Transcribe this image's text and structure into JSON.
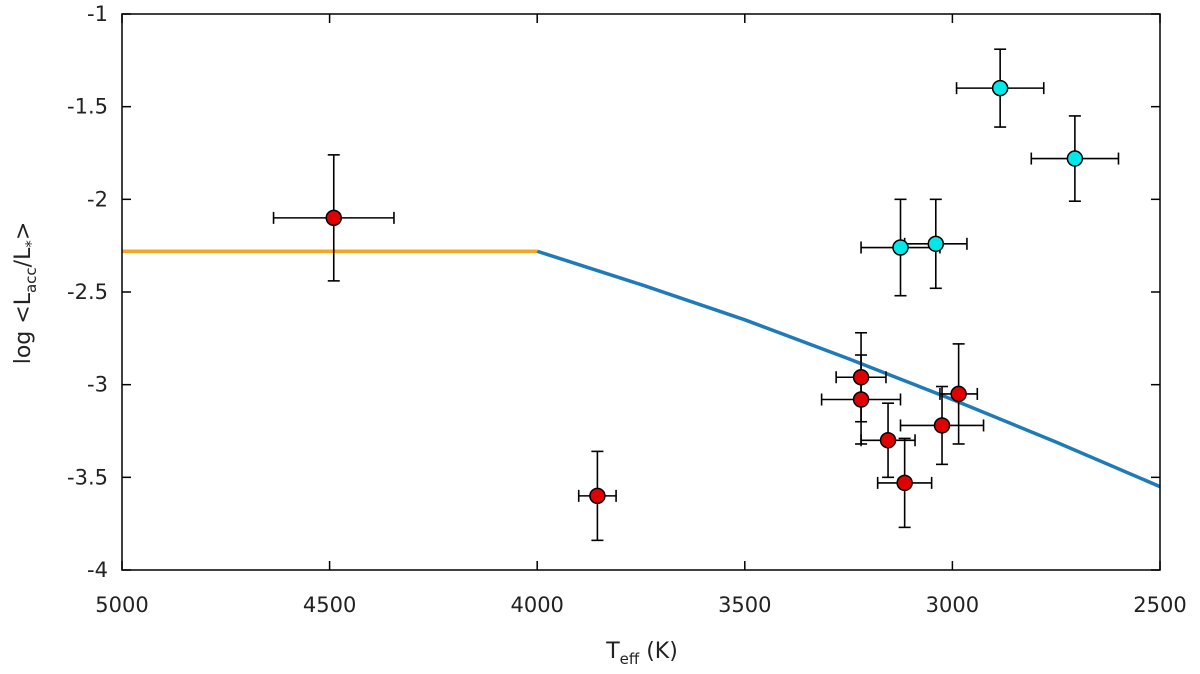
{
  "chart_data": {
    "type": "scatter",
    "title": "",
    "xlabel": {
      "main": "T",
      "sub": "eff",
      "tail": " (K)"
    },
    "ylabel": {
      "prefix": "log <L",
      "sub": "acc",
      "middle": "/L",
      "star": "*",
      "suffix": ">"
    },
    "xlim": [
      5000,
      2500
    ],
    "ylim": [
      -4,
      -1
    ],
    "x_ticks": [
      "5000",
      "4500",
      "4000",
      "3500",
      "3000",
      "2500"
    ],
    "y_ticks": [
      "-1",
      "-1.5",
      "-2",
      "-2.5",
      "-3",
      "-3.5",
      "-4"
    ],
    "grid": false,
    "series": [
      {
        "name": "red points",
        "color": "#e00000",
        "points": [
          {
            "x": 4490,
            "y": -2.1,
            "xerr": 145,
            "yerr": 0.34
          },
          {
            "x": 3855,
            "y": -3.6,
            "xerr": 45,
            "yerr": 0.24
          },
          {
            "x": 3220,
            "y": -2.96,
            "xerr": 60,
            "yerr": 0.24
          },
          {
            "x": 3220,
            "y": -3.08,
            "xerr": 95,
            "yerr": 0.24
          },
          {
            "x": 3155,
            "y": -3.3,
            "xerr": 65,
            "yerr": 0.2
          },
          {
            "x": 3115,
            "y": -3.53,
            "xerr": 65,
            "yerr": 0.24
          },
          {
            "x": 3025,
            "y": -3.22,
            "xerr": 100,
            "yerr": 0.21
          },
          {
            "x": 2985,
            "y": -3.05,
            "xerr": 45,
            "yerr": 0.27
          }
        ]
      },
      {
        "name": "cyan points",
        "color": "#00e8e8",
        "points": [
          {
            "x": 2885,
            "y": -1.4,
            "xerr": 105,
            "yerr": 0.21
          },
          {
            "x": 2705,
            "y": -1.78,
            "xerr": 105,
            "yerr": 0.23
          },
          {
            "x": 3125,
            "y": -2.26,
            "xerr": 95,
            "yerr": 0.26
          },
          {
            "x": 3040,
            "y": -2.24,
            "xerr": 75,
            "yerr": 0.24
          }
        ]
      }
    ],
    "lines": [
      {
        "name": "orange line",
        "color": "#f5a623",
        "x": [
          5000,
          4000
        ],
        "y": [
          -2.28,
          -2.28
        ]
      },
      {
        "name": "blue curve",
        "color": "#1f7ab8",
        "x": [
          4000,
          3750,
          3500,
          3250,
          3000,
          2750,
          2500
        ],
        "y": [
          -2.28,
          -2.46,
          -2.65,
          -2.86,
          -3.08,
          -3.31,
          -3.55
        ]
      }
    ]
  }
}
